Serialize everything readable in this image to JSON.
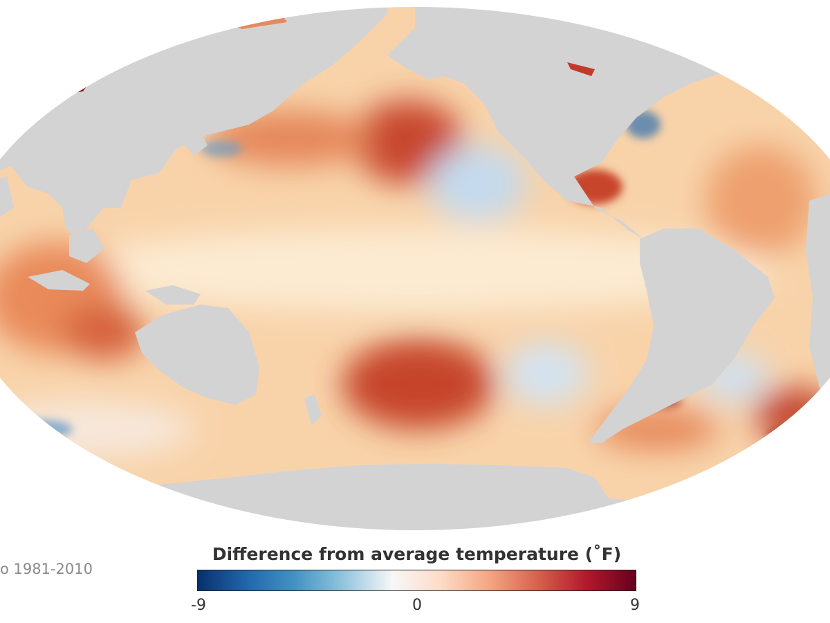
{
  "map": {
    "projection": "oval world map, Pacific-centered",
    "colors": {
      "land": "#d3d3d3",
      "background": "#ffffff"
    },
    "anomaly_regions": [
      {
        "area": "north-pacific-center",
        "anomaly_f": 5.5
      },
      {
        "area": "south-pacific-center",
        "anomaly_f": 6
      },
      {
        "area": "equatorial-pacific",
        "anomaly_f": 1
      },
      {
        "area": "northeast-pacific",
        "anomaly_f": -2
      },
      {
        "area": "southeast-pacific",
        "anomaly_f": -1.5
      },
      {
        "area": "north-atlantic",
        "anomaly_f": 3
      },
      {
        "area": "gulf-of-mexico",
        "anomaly_f": 5
      },
      {
        "area": "indian-ocean-east",
        "anomaly_f": 4
      },
      {
        "area": "southwest-atlantic",
        "anomaly_f": 6
      },
      {
        "area": "southern-ocean",
        "anomaly_f": -1
      }
    ]
  },
  "caption": {
    "baseline": "o 1981-2010"
  },
  "legend": {
    "title": "Difference from average temperature (˚F)",
    "ticks": [
      "-9",
      "0",
      "9"
    ],
    "min": -9,
    "max": 9,
    "stops": [
      "#08306b",
      "#2166ac",
      "#4393c3",
      "#92c5de",
      "#f7f7f7",
      "#fddbc7",
      "#f4a582",
      "#d6604d",
      "#b2182b",
      "#67001f"
    ]
  }
}
